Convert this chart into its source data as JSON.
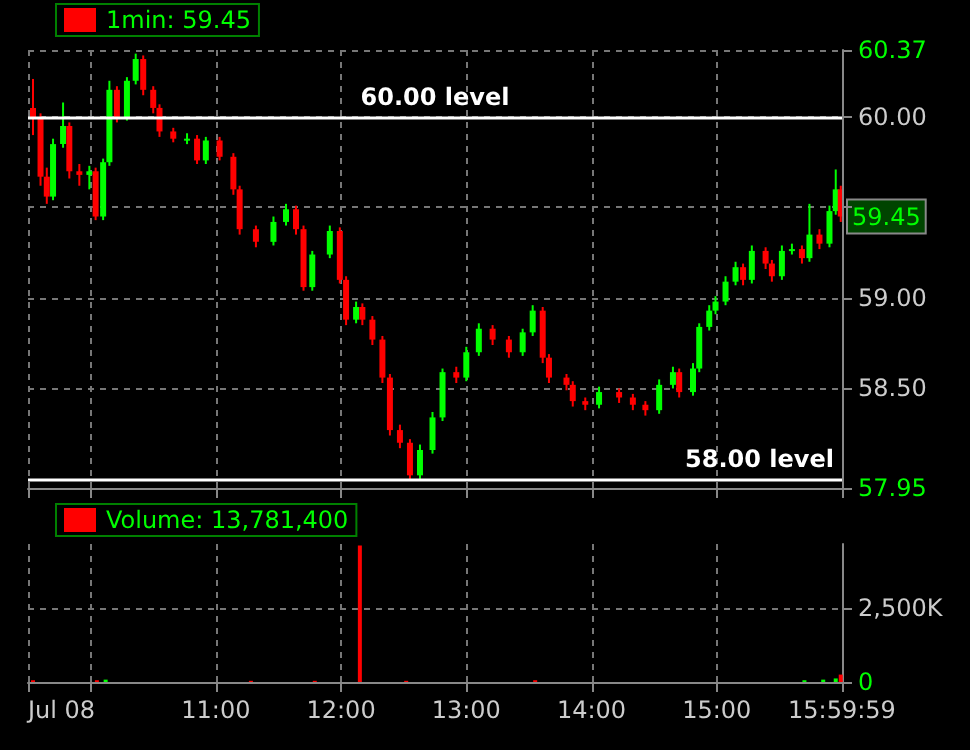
{
  "chart_data": [
    {
      "type": "candlestick",
      "legend": "top left",
      "grid": true,
      "tick_labels": "y",
      "x": [
        9.54,
        9.6,
        9.65,
        9.7,
        9.78,
        9.83,
        9.91,
        9.99,
        10.04,
        10.1,
        10.15,
        10.21,
        10.29,
        10.36,
        10.42,
        10.5,
        10.55,
        10.66,
        10.77,
        10.85,
        10.92,
        11.03,
        11.14,
        11.19,
        11.32,
        11.46,
        11.56,
        11.64,
        11.7,
        11.77,
        11.91,
        11.99,
        12.04,
        12.12,
        12.17,
        12.25,
        12.33,
        12.39,
        12.47,
        12.55,
        12.63,
        12.73,
        12.81,
        12.92,
        13.0,
        13.1,
        13.21,
        13.34,
        13.45,
        13.53,
        13.61,
        13.66,
        13.8,
        13.85,
        13.95,
        14.06,
        14.22,
        14.33,
        14.43,
        14.54,
        14.65,
        14.7,
        14.81,
        14.86,
        14.94,
        14.99,
        15.07,
        15.15,
        15.21,
        15.28,
        15.39,
        15.44,
        15.52,
        15.6,
        15.68,
        15.74,
        15.82,
        15.9,
        15.95,
        15.99
      ],
      "series": [
        {
          "name": "1min: 59.45",
          "ohlc": [
            [
              60.05,
              60.21,
              59.9,
              59.99
            ],
            [
              59.99,
              60.02,
              59.62,
              59.67
            ],
            [
              59.67,
              59.72,
              59.52,
              59.56
            ],
            [
              59.56,
              59.88,
              59.54,
              59.85
            ],
            [
              59.85,
              60.08,
              59.83,
              59.95
            ],
            [
              59.95,
              59.97,
              59.66,
              59.7
            ],
            [
              59.7,
              59.74,
              59.62,
              59.68
            ],
            [
              59.68,
              59.73,
              59.6,
              59.7
            ],
            [
              59.7,
              59.72,
              59.43,
              59.45
            ],
            [
              59.45,
              59.77,
              59.43,
              59.75
            ],
            [
              59.75,
              60.2,
              59.73,
              60.15
            ],
            [
              60.15,
              60.17,
              59.97,
              60.0
            ],
            [
              60.0,
              60.22,
              59.98,
              60.2
            ],
            [
              60.2,
              60.35,
              60.18,
              60.32
            ],
            [
              60.32,
              60.34,
              60.12,
              60.15
            ],
            [
              60.15,
              60.17,
              60.02,
              60.05
            ],
            [
              60.05,
              60.07,
              59.89,
              59.92
            ],
            [
              59.92,
              59.94,
              59.86,
              59.88
            ],
            [
              59.88,
              59.91,
              59.85,
              59.88
            ],
            [
              59.88,
              59.9,
              59.74,
              59.76
            ],
            [
              59.76,
              59.89,
              59.74,
              59.87
            ],
            [
              59.87,
              59.89,
              59.76,
              59.78
            ],
            [
              59.78,
              59.8,
              59.57,
              59.6
            ],
            [
              59.6,
              59.62,
              59.35,
              59.38
            ],
            [
              59.38,
              59.4,
              59.28,
              59.31
            ],
            [
              59.31,
              59.45,
              59.29,
              59.42
            ],
            [
              59.42,
              59.52,
              59.4,
              59.49
            ],
            [
              59.49,
              59.51,
              59.35,
              59.38
            ],
            [
              59.38,
              59.4,
              59.04,
              59.06
            ],
            [
              59.06,
              59.26,
              59.04,
              59.24
            ],
            [
              59.24,
              59.4,
              59.22,
              59.37
            ],
            [
              59.37,
              59.39,
              59.08,
              59.1
            ],
            [
              59.1,
              59.12,
              58.85,
              58.88
            ],
            [
              58.88,
              58.98,
              58.86,
              58.95
            ],
            [
              58.95,
              58.97,
              58.85,
              58.88
            ],
            [
              58.88,
              58.9,
              58.74,
              58.77
            ],
            [
              58.77,
              58.79,
              58.53,
              58.56
            ],
            [
              58.56,
              58.58,
              58.24,
              58.27
            ],
            [
              58.27,
              58.3,
              58.17,
              58.2
            ],
            [
              58.2,
              58.22,
              57.99,
              58.02
            ],
            [
              58.02,
              58.19,
              58.0,
              58.16
            ],
            [
              58.16,
              58.37,
              58.14,
              58.34
            ],
            [
              58.34,
              58.61,
              58.32,
              58.59
            ],
            [
              58.59,
              58.62,
              58.53,
              58.56
            ],
            [
              58.56,
              58.73,
              58.54,
              58.7
            ],
            [
              58.7,
              58.86,
              58.68,
              58.83
            ],
            [
              58.83,
              58.85,
              58.74,
              58.77
            ],
            [
              58.77,
              58.79,
              58.67,
              58.7
            ],
            [
              58.7,
              58.83,
              58.68,
              58.81
            ],
            [
              58.81,
              58.96,
              58.79,
              58.93
            ],
            [
              58.93,
              58.95,
              58.64,
              58.67
            ],
            [
              58.67,
              58.69,
              58.53,
              58.56
            ],
            [
              58.56,
              58.58,
              58.49,
              58.52
            ],
            [
              58.52,
              58.54,
              58.4,
              58.43
            ],
            [
              58.43,
              58.45,
              58.38,
              58.41
            ],
            [
              58.41,
              58.51,
              58.39,
              58.48
            ],
            [
              58.48,
              58.5,
              58.42,
              58.45
            ],
            [
              58.45,
              58.47,
              58.38,
              58.41
            ],
            [
              58.41,
              58.43,
              58.35,
              58.38
            ],
            [
              58.38,
              58.55,
              58.36,
              58.52
            ],
            [
              58.52,
              58.62,
              58.5,
              58.59
            ],
            [
              58.59,
              58.61,
              58.45,
              58.48
            ],
            [
              58.48,
              58.64,
              58.46,
              58.61
            ],
            [
              58.61,
              58.86,
              58.59,
              58.84
            ],
            [
              58.84,
              58.96,
              58.82,
              58.93
            ],
            [
              58.93,
              59.01,
              58.91,
              58.98
            ],
            [
              58.98,
              59.12,
              58.96,
              59.09
            ],
            [
              59.09,
              59.2,
              59.07,
              59.17
            ],
            [
              59.17,
              59.19,
              59.07,
              59.1
            ],
            [
              59.1,
              59.29,
              59.08,
              59.26
            ],
            [
              59.26,
              59.28,
              59.16,
              59.19
            ],
            [
              59.19,
              59.21,
              59.09,
              59.12
            ],
            [
              59.12,
              59.29,
              59.1,
              59.26
            ],
            [
              59.26,
              59.3,
              59.24,
              59.27
            ],
            [
              59.27,
              59.29,
              59.19,
              59.22
            ],
            [
              59.22,
              59.52,
              59.2,
              59.35
            ],
            [
              59.35,
              59.38,
              59.27,
              59.3
            ],
            [
              59.3,
              59.51,
              59.28,
              59.48
            ],
            [
              59.48,
              59.71,
              59.46,
              59.6
            ],
            [
              59.6,
              59.62,
              59.42,
              59.45
            ]
          ],
          "colors": [
            "#ff0000",
            "#ff0000",
            "#ff0000",
            "#00ff00",
            "#00ff00",
            "#ff0000",
            "#ff0000",
            "#00ff00",
            "#ff0000",
            "#00ff00",
            "#00ff00",
            "#ff0000",
            "#00ff00",
            "#00ff00",
            "#ff0000",
            "#ff0000",
            "#ff0000",
            "#ff0000",
            "#00ff00",
            "#ff0000",
            "#00ff00",
            "#ff0000",
            "#ff0000",
            "#ff0000",
            "#ff0000",
            "#00ff00",
            "#00ff00",
            "#ff0000",
            "#ff0000",
            "#00ff00",
            "#00ff00",
            "#ff0000",
            "#ff0000",
            "#00ff00",
            "#ff0000",
            "#ff0000",
            "#ff0000",
            "#ff0000",
            "#ff0000",
            "#ff0000",
            "#00ff00",
            "#00ff00",
            "#00ff00",
            "#ff0000",
            "#00ff00",
            "#00ff00",
            "#ff0000",
            "#ff0000",
            "#00ff00",
            "#00ff00",
            "#ff0000",
            "#ff0000",
            "#ff0000",
            "#ff0000",
            "#ff0000",
            "#00ff00",
            "#ff0000",
            "#ff0000",
            "#ff0000",
            "#00ff00",
            "#00ff00",
            "#ff0000",
            "#00ff00",
            "#00ff00",
            "#00ff00",
            "#00ff00",
            "#00ff00",
            "#00ff00",
            "#ff0000",
            "#00ff00",
            "#ff0000",
            "#ff0000",
            "#00ff00",
            "#00ff00",
            "#ff0000",
            "#00ff00",
            "#ff0000",
            "#00ff00",
            "#00ff00",
            "#ff0000"
          ]
        }
      ],
      "xlim": [
        9.5,
        16
      ],
      "xticks": [
        {
          "value": 9.5,
          "label": null
        },
        {
          "value": 10,
          "label": null
        },
        {
          "value": 11,
          "label": null
        },
        {
          "value": 12,
          "label": null
        },
        {
          "value": 13,
          "label": null
        },
        {
          "value": 14,
          "label": null
        },
        {
          "value": 15,
          "label": null
        },
        {
          "value": 15.9997,
          "label": null
        }
      ],
      "ylim": [
        57.95,
        60.37
      ],
      "yticks": [
        57.95,
        {
          "value": 58.5,
          "label": "58.50"
        },
        {
          "value": 59,
          "label": "59.00"
        },
        {
          "value": 59.5,
          "label": null
        },
        {
          "value": 60,
          "label": "60.00"
        },
        60.37
      ],
      "ref_lines": [
        {
          "axis": "y",
          "value": 60,
          "label": "60.00 level",
          "color": "#ffffff"
        },
        {
          "axis": "y",
          "value": 58,
          "label": "58.00 level",
          "color": "#ffffff"
        }
      ],
      "annotations": [
        {
          "text": "59.45",
          "x": 16,
          "y": 59.45
        }
      ]
    },
    {
      "type": "bar",
      "legend": "top left",
      "grid": true,
      "series": [
        {
          "name": "Volume: 13,781,400",
          "x": [
            9.54,
            10.05,
            10.12,
            11.28,
            11.79,
            12.15,
            12.52,
            13.55,
            15.7,
            15.85,
            15.95,
            15.99
          ],
          "values": [
            60,
            60,
            80,
            40,
            40,
            4600,
            40,
            60,
            60,
            80,
            120,
            250
          ],
          "colors": [
            "#ff0000",
            "#ff0000",
            "#00ff00",
            "#ff0000",
            "#ff0000",
            "#ff0000",
            "#ff0000",
            "#ff0000",
            "#00ff00",
            "#00ff00",
            "#00ff00",
            "#ff0000"
          ]
        }
      ],
      "xlim": [
        9.5,
        16
      ],
      "xticks": [
        {
          "value": 9.5,
          "label": "Jul 08"
        },
        {
          "value": 10,
          "label": null
        },
        {
          "value": 11,
          "label": "11:00"
        },
        {
          "value": 12,
          "label": "12:00"
        },
        {
          "value": 13,
          "label": "13:00"
        },
        {
          "value": 14,
          "label": "14:00"
        },
        {
          "value": 15,
          "label": "15:00"
        },
        {
          "value": 15.9997,
          "label": "15:59:59"
        }
      ],
      "ylim": [
        0,
        4650
      ],
      "yticks": [
        0,
        {
          "value": 2500,
          "label": "2,500K"
        }
      ]
    }
  ]
}
